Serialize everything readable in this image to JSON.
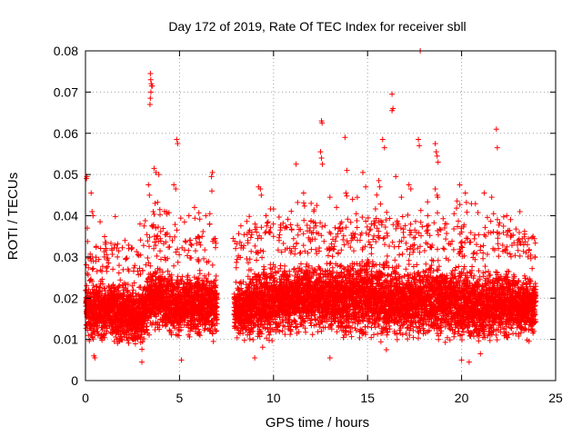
{
  "chart_data": {
    "type": "scatter",
    "title": "Day 172 of 2019, Rate Of TEC Index for receiver sbll",
    "xlabel": "GPS time / hours",
    "ylabel": "ROTI / TECUs",
    "xlim": [
      0,
      25
    ],
    "ylim": [
      0,
      0.08
    ],
    "xticks": [
      0,
      5,
      10,
      15,
      20,
      25
    ],
    "yticks": [
      0,
      0.01,
      0.02,
      0.03,
      0.04,
      0.05,
      0.06,
      0.07,
      0.08
    ],
    "xtick_labels": [
      "0",
      "5",
      "10",
      "15",
      "20",
      "25"
    ],
    "ytick_labels": [
      "0",
      "0.01",
      "0.02",
      "0.03",
      "0.04",
      "0.05",
      "0.06",
      "0.07",
      "0.08"
    ],
    "grid": true,
    "marker": "+",
    "color": "#ff0000",
    "data_gap_hours": [
      7.0,
      7.9
    ],
    "series": [
      {
        "name": "ROTI",
        "points": [
          [
            0.05,
            0.049
          ],
          [
            0.08,
            0.0495
          ],
          [
            0.1,
            0.037
          ],
          [
            0.1,
            0.026
          ],
          [
            0.3,
            0.0455
          ],
          [
            0.35,
            0.041
          ],
          [
            0.4,
            0.04
          ],
          [
            0.45,
            0.006
          ],
          [
            0.5,
            0.0055
          ],
          [
            1.0,
            0.03
          ],
          [
            1.4,
            0.032
          ],
          [
            1.7,
            0.03
          ],
          [
            2.1,
            0.034
          ],
          [
            2.3,
            0.032
          ],
          [
            2.9,
            0.038
          ],
          [
            3.45,
            0.0745
          ],
          [
            3.47,
            0.073
          ],
          [
            3.5,
            0.072
          ],
          [
            3.52,
            0.0715
          ],
          [
            3.48,
            0.07
          ],
          [
            3.45,
            0.0685
          ],
          [
            3.43,
            0.067
          ],
          [
            3.55,
            0.0715
          ],
          [
            3.35,
            0.0475
          ],
          [
            3.4,
            0.045
          ],
          [
            3.65,
            0.0515
          ],
          [
            3.75,
            0.0505
          ],
          [
            3.9,
            0.05
          ],
          [
            3.7,
            0.043
          ],
          [
            3.6,
            0.041
          ],
          [
            4.7,
            0.0475
          ],
          [
            4.8,
            0.0465
          ],
          [
            4.85,
            0.0585
          ],
          [
            4.9,
            0.0575
          ],
          [
            5.5,
            0.04
          ],
          [
            5.8,
            0.042
          ],
          [
            6.2,
            0.035
          ],
          [
            6.4,
            0.04
          ],
          [
            6.6,
            0.038
          ],
          [
            6.75,
            0.0505
          ],
          [
            6.7,
            0.0495
          ],
          [
            6.72,
            0.046
          ],
          [
            3.0,
            0.0045
          ],
          [
            5.1,
            0.005
          ],
          [
            6.8,
            0.0095
          ],
          [
            7.85,
            0.0345
          ],
          [
            8.6,
            0.0355
          ],
          [
            9.1,
            0.036
          ],
          [
            9.2,
            0.047
          ],
          [
            9.3,
            0.0465
          ],
          [
            9.35,
            0.045
          ],
          [
            9.6,
            0.04
          ],
          [
            9.75,
            0.036
          ],
          [
            10.0,
            0.035
          ],
          [
            10.3,
            0.034
          ],
          [
            10.6,
            0.037
          ],
          [
            11.2,
            0.0525
          ],
          [
            11.6,
            0.0455
          ],
          [
            12.0,
            0.043
          ],
          [
            12.3,
            0.0425
          ],
          [
            12.55,
            0.063
          ],
          [
            12.58,
            0.0625
          ],
          [
            12.5,
            0.0555
          ],
          [
            12.55,
            0.054
          ],
          [
            12.6,
            0.0525
          ],
          [
            13.0,
            0.0445
          ],
          [
            13.35,
            0.042
          ],
          [
            13.8,
            0.059
          ],
          [
            13.9,
            0.051
          ],
          [
            13.85,
            0.0455
          ],
          [
            14.2,
            0.044
          ],
          [
            14.4,
            0.0405
          ],
          [
            14.75,
            0.0505
          ],
          [
            14.9,
            0.047
          ],
          [
            15.2,
            0.038
          ],
          [
            15.6,
            0.0485
          ],
          [
            15.65,
            0.047
          ],
          [
            15.8,
            0.0585
          ],
          [
            15.9,
            0.0565
          ],
          [
            16.3,
            0.0695
          ],
          [
            16.35,
            0.066
          ],
          [
            16.3,
            0.0655
          ],
          [
            16.5,
            0.0495
          ],
          [
            16.8,
            0.0445
          ],
          [
            17.2,
            0.0475
          ],
          [
            17.3,
            0.0465
          ],
          [
            17.7,
            0.0585
          ],
          [
            17.75,
            0.057
          ],
          [
            17.8,
            0.08
          ],
          [
            18.2,
            0.04
          ],
          [
            18.6,
            0.0575
          ],
          [
            18.65,
            0.0555
          ],
          [
            18.7,
            0.0545
          ],
          [
            18.75,
            0.053
          ],
          [
            18.6,
            0.0465
          ],
          [
            18.7,
            0.045
          ],
          [
            19.2,
            0.038
          ],
          [
            19.6,
            0.0405
          ],
          [
            19.9,
            0.0475
          ],
          [
            20.2,
            0.0455
          ],
          [
            21.2,
            0.0455
          ],
          [
            21.6,
            0.0445
          ],
          [
            21.7,
            0.0405
          ],
          [
            21.85,
            0.061
          ],
          [
            21.9,
            0.0565
          ],
          [
            22.4,
            0.04
          ],
          [
            23.1,
            0.041
          ],
          [
            23.5,
            0.033
          ],
          [
            23.8,
            0.035
          ],
          [
            23.9,
            0.03
          ],
          [
            9.0,
            0.0055
          ],
          [
            13.0,
            0.0055
          ],
          [
            20.0,
            0.005
          ],
          [
            20.4,
            0.0045
          ],
          [
            16.0,
            0.0075
          ],
          [
            21.0,
            0.0065
          ]
        ],
        "band_profile": {
          "hours": [
            0.0,
            1.0,
            2.0,
            3.0,
            3.5,
            4.0,
            5.0,
            6.0,
            6.9,
            8.0,
            9.0,
            10.0,
            11.0,
            12.0,
            13.0,
            14.0,
            15.0,
            16.0,
            17.0,
            18.0,
            19.0,
            20.0,
            21.0,
            22.0,
            23.0,
            23.9
          ],
          "lower": [
            0.008,
            0.008,
            0.007,
            0.006,
            0.01,
            0.01,
            0.009,
            0.009,
            0.01,
            0.008,
            0.007,
            0.008,
            0.009,
            0.01,
            0.01,
            0.008,
            0.009,
            0.008,
            0.008,
            0.008,
            0.008,
            0.007,
            0.007,
            0.008,
            0.008,
            0.009
          ],
          "upper": [
            0.027,
            0.026,
            0.026,
            0.025,
            0.03,
            0.029,
            0.027,
            0.028,
            0.027,
            0.026,
            0.029,
            0.031,
            0.03,
            0.031,
            0.03,
            0.031,
            0.032,
            0.031,
            0.03,
            0.031,
            0.031,
            0.03,
            0.029,
            0.03,
            0.028,
            0.027
          ]
        }
      }
    ]
  }
}
